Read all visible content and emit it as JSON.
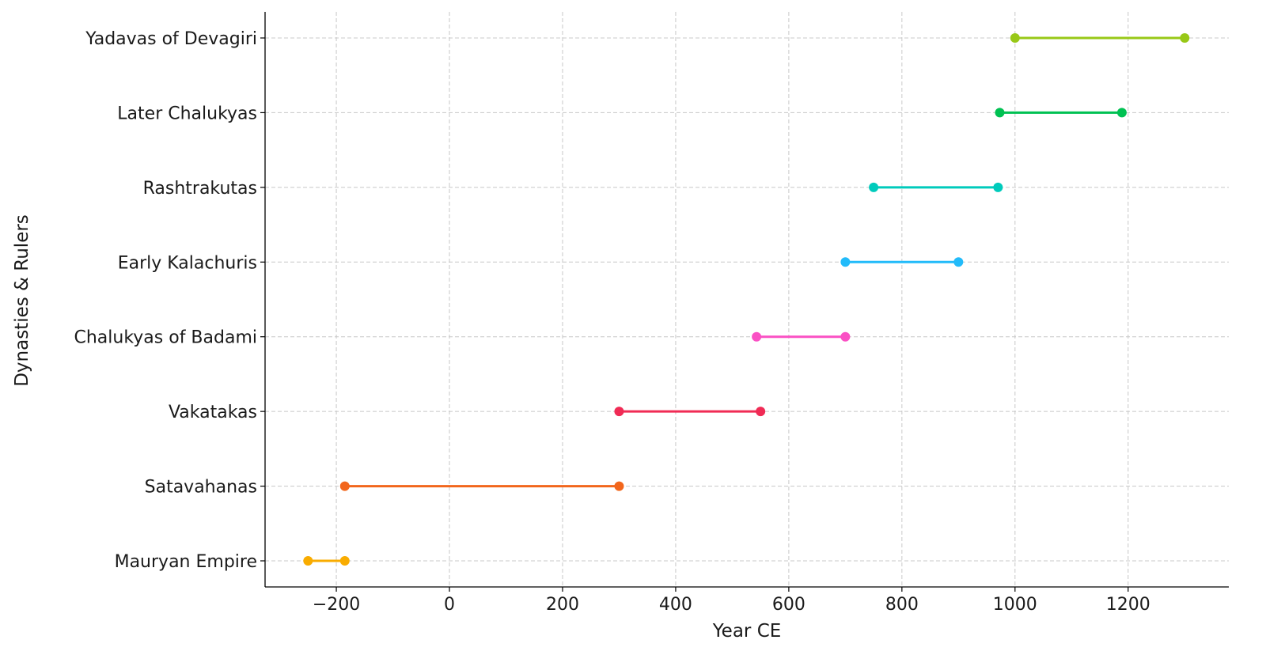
{
  "chart_data": {
    "type": "range-dot",
    "title": "",
    "xlabel": "Year CE",
    "ylabel": "Dynasties & Rulers",
    "xlim": [
      -326,
      1378
    ],
    "xticks": [
      -200,
      0,
      200,
      400,
      600,
      800,
      1000,
      1200
    ],
    "xtick_labels": [
      "−200",
      "0",
      "200",
      "400",
      "600",
      "800",
      "1000",
      "1200"
    ],
    "grid": true,
    "series": [
      {
        "label": "Mauryan Empire",
        "start": -250,
        "end": -185,
        "color": "#f9ac00"
      },
      {
        "label": "Satavahanas",
        "start": -185,
        "end": 300,
        "color": "#f2661c"
      },
      {
        "label": "Vakatakas",
        "start": 300,
        "end": 550,
        "color": "#f02b55"
      },
      {
        "label": "Chalukyas of Badami",
        "start": 543,
        "end": 700,
        "color": "#fa50c4"
      },
      {
        "label": "Early Kalachuris",
        "start": 700,
        "end": 900,
        "color": "#22bbfa"
      },
      {
        "label": "Rashtrakutas",
        "start": 750,
        "end": 970,
        "color": "#00cbbc"
      },
      {
        "label": "Later Chalukyas",
        "start": 973,
        "end": 1189,
        "color": "#00c152"
      },
      {
        "label": "Yadavas of Devagiri",
        "start": 1000,
        "end": 1300,
        "color": "#98c817"
      }
    ]
  }
}
